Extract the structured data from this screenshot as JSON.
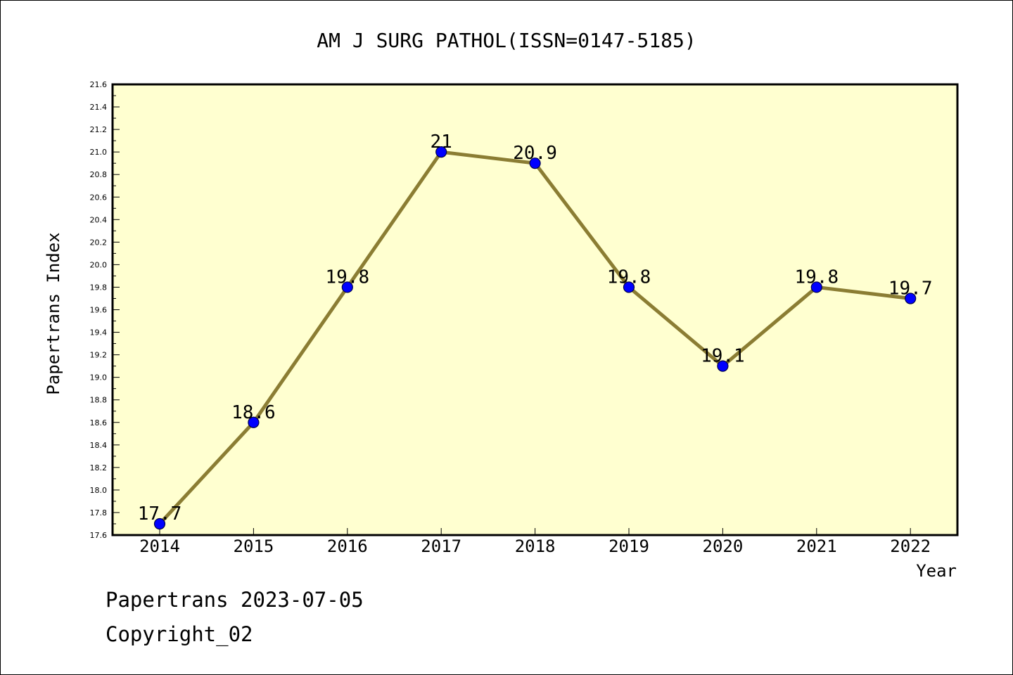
{
  "chart_data": {
    "type": "line",
    "title": "AM J SURG PATHOL(ISSN=0147-5185)",
    "xlabel": "Year",
    "ylabel": "Papertrans Index",
    "categories": [
      "2014",
      "2015",
      "2016",
      "2017",
      "2018",
      "2019",
      "2020",
      "2021",
      "2022"
    ],
    "series": [
      {
        "values": [
          17.7,
          18.6,
          19.8,
          21,
          20.9,
          19.8,
          19.1,
          19.8,
          19.7
        ],
        "labels": [
          "17.7",
          "18.6",
          "19.8",
          "21",
          "20.9",
          "19.8",
          "19.1",
          "19.8",
          "19.7"
        ]
      }
    ],
    "ylim": [
      17.6,
      21.6
    ],
    "yticks": [
      "17.6",
      "17.8",
      "18.0",
      "18.2",
      "18.4",
      "18.6",
      "18.8",
      "19.0",
      "19.2",
      "19.4",
      "19.6",
      "19.8",
      "20.0",
      "20.2",
      "20.4",
      "20.6",
      "20.8",
      "21.0",
      "21.2",
      "21.4",
      "21.6"
    ],
    "grid": false,
    "legend": "none",
    "colors": {
      "plot_background": "#ffffd0",
      "line": "#8b7d33",
      "marker": "#0000ff",
      "marker_edge": "#00004a"
    }
  },
  "footer": {
    "line1": "Papertrans 2023-07-05",
    "line2": "Copyright_02"
  }
}
